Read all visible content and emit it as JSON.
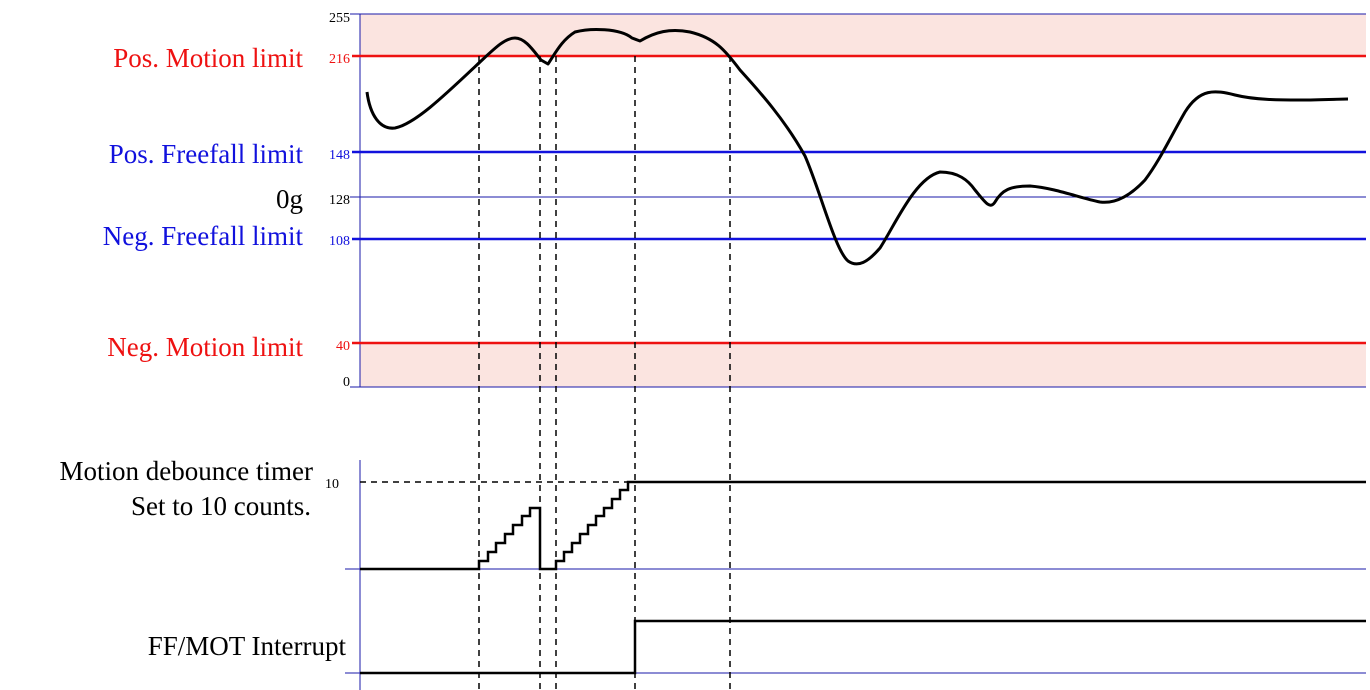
{
  "y_axis_ticks": {
    "t255": "255",
    "t216": "216",
    "t148": "148",
    "t128": "128",
    "t108": "108",
    "t40": "40",
    "t0": "0",
    "t10": "10"
  },
  "level_labels": {
    "pos_motion": "Pos. Motion limit",
    "pos_freefall": "Pos. Freefall limit",
    "zero_g": "0g",
    "neg_freefall": "Neg. Freefall limit",
    "neg_motion": "Neg. Motion limit"
  },
  "signal_labels": {
    "timer_line1": "Motion debounce timer",
    "timer_line2": "Set to 10 counts.",
    "interrupt": "FF/MOT Interrupt"
  },
  "colors": {
    "motion_limit": "#ee1111",
    "freefall_limit": "#1111dd",
    "grid_line": "#1a1aaa",
    "motion_zone": "#fbe4e0",
    "signal": "#000000"
  },
  "chart_data": {
    "type": "line",
    "thresholds": {
      "pos_motion": 216,
      "pos_freefall": 148,
      "zero_g": 128,
      "neg_freefall": 108,
      "neg_motion": 40
    },
    "y_range": [
      0,
      255
    ],
    "acceleration_trace": [
      [
        0,
        200
      ],
      [
        6,
        176
      ],
      [
        14,
        182
      ],
      [
        23,
        203
      ],
      [
        33,
        226
      ],
      [
        38,
        223
      ],
      [
        41,
        213
      ],
      [
        45,
        227
      ],
      [
        55,
        226
      ],
      [
        63,
        230
      ],
      [
        71,
        225
      ],
      [
        80,
        212
      ],
      [
        85,
        178
      ],
      [
        89,
        135
      ],
      [
        92,
        108
      ],
      [
        94,
        101
      ],
      [
        97,
        111
      ],
      [
        100,
        131
      ],
      [
        103,
        146
      ],
      [
        106,
        136
      ],
      [
        108,
        126
      ],
      [
        110,
        136
      ],
      [
        113,
        137
      ],
      [
        117,
        131
      ],
      [
        120,
        130
      ],
      [
        123,
        138
      ],
      [
        126,
        157
      ],
      [
        129,
        191
      ],
      [
        132,
        201
      ],
      [
        135,
        198
      ],
      [
        141,
        197
      ],
      [
        150,
        198
      ]
    ],
    "debounce_timer_max_counts": 10,
    "interrupt_asserted": true
  }
}
